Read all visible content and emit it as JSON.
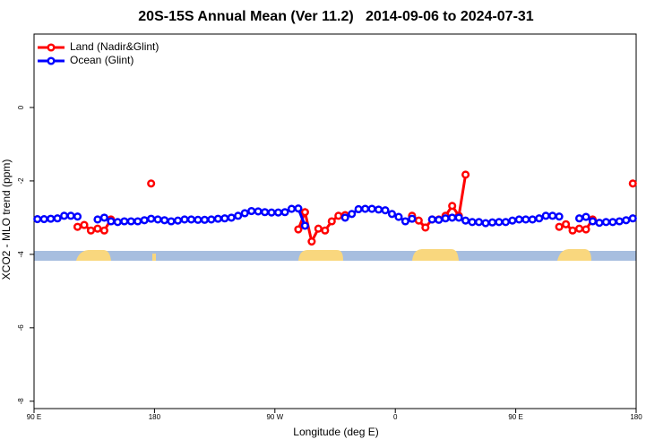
{
  "chart_data": {
    "type": "line",
    "title": "20S-15S Annual Mean (Ver 11.2)   2014-09-06 to 2024-07-31",
    "x_label": "Longitude (deg E)",
    "y_label": "XCO2 - MLO trend (ppm)",
    "xlim": [
      90,
      540
    ],
    "xticks": [
      {
        "value": 90,
        "label": "90 E"
      },
      {
        "value": 180,
        "label": "180"
      },
      {
        "value": 270,
        "label": "90 W"
      },
      {
        "value": 360,
        "label": "0"
      },
      {
        "value": 450,
        "label": "90 E"
      },
      {
        "value": 540,
        "label": "180"
      }
    ],
    "ylim": [
      -8.2,
      2.0
    ],
    "yticks": [
      0,
      -2,
      -4,
      -6,
      -8
    ],
    "legend": "top-left",
    "x": [
      92.5,
      97.5,
      102.5,
      107.5,
      112.5,
      117.5,
      122.5,
      127.5,
      132.5,
      137.5,
      142.5,
      147.5,
      152.5,
      157.5,
      162.5,
      167.5,
      172.5,
      177.5,
      182.5,
      187.5,
      192.5,
      197.5,
      202.5,
      207.5,
      212.5,
      217.5,
      222.5,
      227.5,
      232.5,
      237.5,
      242.5,
      247.5,
      252.5,
      257.5,
      262.5,
      267.5,
      272.5,
      277.5,
      282.5,
      287.5,
      292.5,
      297.5,
      302.5,
      307.5,
      312.5,
      317.5,
      322.5,
      327.5,
      332.5,
      337.5,
      342.5,
      347.5,
      352.5,
      357.5,
      362.5,
      367.5,
      372.5,
      377.5,
      382.5,
      387.5,
      392.5,
      397.5,
      402.5,
      407.5,
      412.5,
      417.5,
      422.5,
      427.5,
      432.5,
      437.5,
      442.5,
      447.5,
      452.5,
      457.5,
      462.5,
      467.5,
      472.5,
      477.5,
      482.5,
      487.5,
      492.5,
      497.5,
      502.5,
      507.5,
      512.5,
      517.5,
      522.5,
      527.5,
      532.5,
      537.5
    ],
    "series": [
      {
        "name": "Land (Nadir&Glint)",
        "color": "#ff0000",
        "values": [
          null,
          null,
          null,
          null,
          null,
          null,
          -3.25,
          -3.2,
          -3.35,
          -3.3,
          -3.35,
          -3.05,
          null,
          null,
          null,
          null,
          null,
          -2.07,
          null,
          null,
          null,
          null,
          null,
          null,
          null,
          null,
          null,
          null,
          null,
          null,
          null,
          null,
          null,
          null,
          null,
          null,
          null,
          null,
          null,
          -3.32,
          -2.85,
          -3.65,
          -3.3,
          -3.35,
          -3.1,
          -2.95,
          -2.93,
          null,
          null,
          null,
          null,
          null,
          null,
          null,
          null,
          null,
          -2.95,
          -3.08,
          -3.27,
          -3.05,
          -3.05,
          -2.95,
          -2.68,
          -2.95,
          -1.83,
          null,
          null,
          null,
          null,
          null,
          null,
          null,
          null,
          null,
          null,
          null,
          null,
          null,
          -3.25,
          -3.18,
          -3.35,
          -3.3,
          -3.32,
          -3.05,
          null,
          null,
          null,
          null,
          null,
          -2.07
        ]
      },
      {
        "name": "Ocean (Glint)",
        "color": "#0000ff",
        "values": [
          -3.04,
          -3.04,
          -3.03,
          -3.02,
          -2.95,
          -2.95,
          -2.97,
          null,
          null,
          -3.05,
          -3.0,
          -3.1,
          -3.12,
          -3.1,
          -3.1,
          -3.1,
          -3.07,
          -3.03,
          -3.05,
          -3.07,
          -3.1,
          -3.08,
          -3.05,
          -3.05,
          -3.06,
          -3.06,
          -3.05,
          -3.03,
          -3.02,
          -3.0,
          -2.95,
          -2.88,
          -2.82,
          -2.83,
          -2.85,
          -2.86,
          -2.86,
          -2.85,
          -2.76,
          -2.75,
          -3.22,
          null,
          null,
          null,
          null,
          null,
          -3.0,
          -2.9,
          -2.77,
          -2.76,
          -2.76,
          -2.78,
          -2.8,
          -2.9,
          -2.98,
          -3.1,
          -3.03,
          null,
          null,
          -3.05,
          -3.06,
          -3.02,
          -3.0,
          -3.0,
          -3.08,
          -3.12,
          -3.12,
          -3.15,
          -3.13,
          -3.12,
          -3.12,
          -3.08,
          -3.05,
          -3.05,
          -3.05,
          -3.02,
          -2.95,
          -2.95,
          -2.97,
          null,
          null,
          -3.02,
          -2.98,
          -3.1,
          -3.14,
          -3.12,
          -3.12,
          -3.1,
          -3.07,
          -3.02
        ]
      }
    ]
  }
}
